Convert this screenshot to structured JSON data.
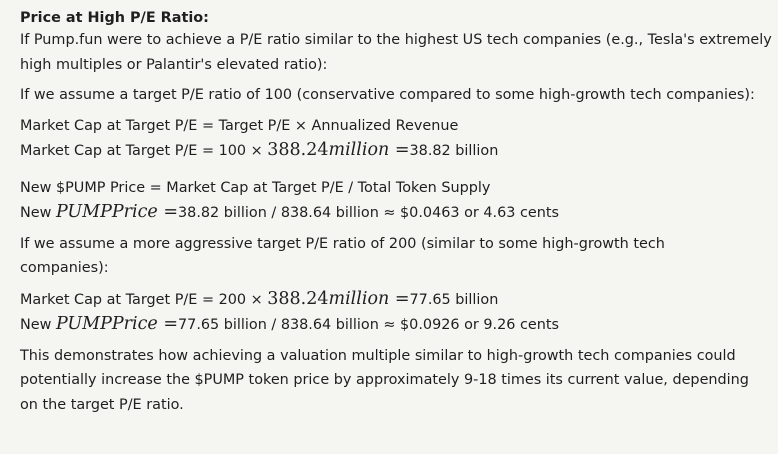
{
  "heading": "Price at High P/E Ratio:",
  "intro": {
    "line1": "If Pump.fun were to achieve a P/E ratio similar to the highest US tech companies (e.g., Tesla's extremely",
    "line2": "high multiples or Palantir's elevated ratio):"
  },
  "scenario1": {
    "assume": "If we assume a target P/E ratio of 100 (conservative compared to some high-growth tech companies):",
    "formula": "Market Cap at Target P/E = Target P/E × Annualized Revenue",
    "calc_prefix": "Market Cap at Target P/E = 100 × ",
    "calc_num": "388.24",
    "calc_word": "million",
    "calc_eq": " =",
    "calc_result": "38.82 billion",
    "price_formula": "New $PUMP Price = Market Cap at Target P/E / Total Token Supply",
    "price_prefix": "New ",
    "price_var": "PUMPPrice",
    "price_eq": " =",
    "price_result": "38.82 billion / 838.64 billion ≈ $0.0463 or 4.63 cents"
  },
  "scenario2": {
    "assume": "If we assume a more aggressive target P/E ratio of 200 (similar to some high-growth tech companies):",
    "calc_prefix": "Market Cap at Target P/E = 200 × ",
    "calc_num": "388.24",
    "calc_word": "million",
    "calc_eq": " =",
    "calc_result": "77.65 billion",
    "price_prefix": "New ",
    "price_var": "PUMPPrice",
    "price_eq": " =",
    "price_result": "77.65 billion / 838.64 billion ≈ $0.0926 or 9.26 cents"
  },
  "conclusion": {
    "line1": "This demonstrates how achieving a valuation multiple similar to high-growth tech companies could",
    "line2": "potentially increase the $PUMP token price by approximately 9-18 times its current value, depending",
    "line3": "on the target P/E ratio."
  }
}
